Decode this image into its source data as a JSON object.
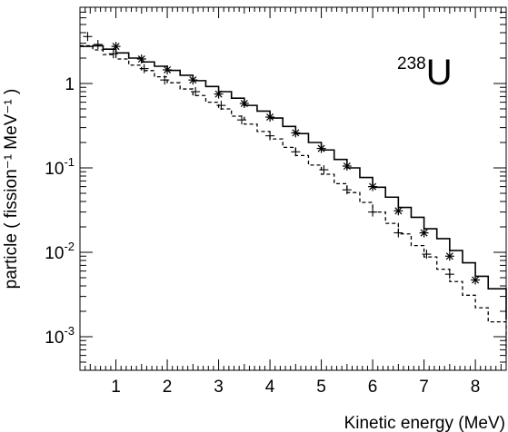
{
  "chart_data": {
    "type": "line",
    "annotation": {
      "superscript": "238",
      "symbol": "U"
    },
    "xlabel": "Kinetic energy (MeV)",
    "ylabel": "particle  ( fission⁻¹ MeV⁻¹ )",
    "xlim": [
      0.3,
      8.6
    ],
    "ylim": [
      0.0004,
      8
    ],
    "yscale": "log",
    "grid": false,
    "xticks": [
      1,
      2,
      3,
      4,
      5,
      6,
      7,
      8
    ],
    "yticks": [
      {
        "value": 0.001,
        "base": "10",
        "exp": "-3"
      },
      {
        "value": 0.01,
        "base": "10",
        "exp": "-2"
      },
      {
        "value": 0.1,
        "base": "10",
        "exp": "-1"
      },
      {
        "value": 1,
        "base": "1",
        "exp": ""
      }
    ],
    "series": [
      {
        "style": "solid-step",
        "x_edges": [
          0.3,
          0.55,
          0.75,
          1.0,
          1.25,
          1.5,
          1.75,
          2.0,
          2.25,
          2.5,
          2.75,
          3.0,
          3.25,
          3.5,
          3.75,
          4.0,
          4.25,
          4.5,
          4.75,
          5.0,
          5.25,
          5.5,
          5.75,
          6.0,
          6.25,
          6.5,
          6.75,
          7.0,
          7.25,
          7.5,
          7.75,
          8.0,
          8.25,
          8.6
        ],
        "values": [
          2.75,
          2.8,
          2.55,
          2.3,
          2.0,
          1.8,
          1.6,
          1.43,
          1.25,
          1.08,
          0.92,
          0.8,
          0.67,
          0.55,
          0.47,
          0.39,
          0.31,
          0.255,
          0.2,
          0.163,
          0.126,
          0.1,
          0.077,
          0.059,
          0.045,
          0.034,
          0.026,
          0.019,
          0.0145,
          0.0105,
          0.0075,
          0.0052,
          0.0037,
          0.0016
        ]
      },
      {
        "style": "dashed-step",
        "x_edges": [
          0.3,
          0.55,
          0.75,
          1.0,
          1.25,
          1.5,
          1.75,
          2.0,
          2.25,
          2.5,
          2.75,
          3.0,
          3.25,
          3.5,
          3.75,
          4.0,
          4.25,
          4.5,
          4.75,
          5.0,
          5.25,
          5.5,
          5.75,
          6.0,
          6.25,
          6.5,
          6.75,
          7.0,
          7.25,
          7.5,
          7.75,
          8.0,
          8.25,
          8.6
        ],
        "values": [
          2.8,
          2.5,
          2.2,
          1.95,
          1.65,
          1.42,
          1.2,
          1.02,
          0.86,
          0.72,
          0.6,
          0.5,
          0.41,
          0.33,
          0.27,
          0.22,
          0.175,
          0.14,
          0.108,
          0.084,
          0.065,
          0.051,
          0.039,
          0.03,
          0.022,
          0.0165,
          0.012,
          0.0088,
          0.0063,
          0.0045,
          0.0031,
          0.0022,
          0.0015,
          0.0006
        ]
      },
      {
        "style": "star-markers",
        "x": [
          1.0,
          1.5,
          2.0,
          2.5,
          3.0,
          3.5,
          4.0,
          4.5,
          5.0,
          5.5,
          6.0,
          6.5,
          7.0,
          7.5,
          8.0
        ],
        "y": [
          2.75,
          1.95,
          1.45,
          1.1,
          0.75,
          0.58,
          0.4,
          0.26,
          0.17,
          0.105,
          0.06,
          0.031,
          0.017,
          0.009,
          0.0047
        ]
      },
      {
        "style": "plus-markers",
        "x": [
          0.45,
          0.65,
          0.95,
          1.55,
          1.95,
          2.55,
          3.05,
          3.45,
          4.0,
          4.5,
          5.05,
          5.5,
          6.0,
          6.5,
          7.05,
          7.5
        ],
        "y": [
          3.6,
          2.9,
          2.25,
          1.5,
          1.1,
          0.8,
          0.55,
          0.37,
          0.24,
          0.155,
          0.095,
          0.055,
          0.03,
          0.017,
          0.0095,
          0.0055
        ]
      }
    ]
  }
}
